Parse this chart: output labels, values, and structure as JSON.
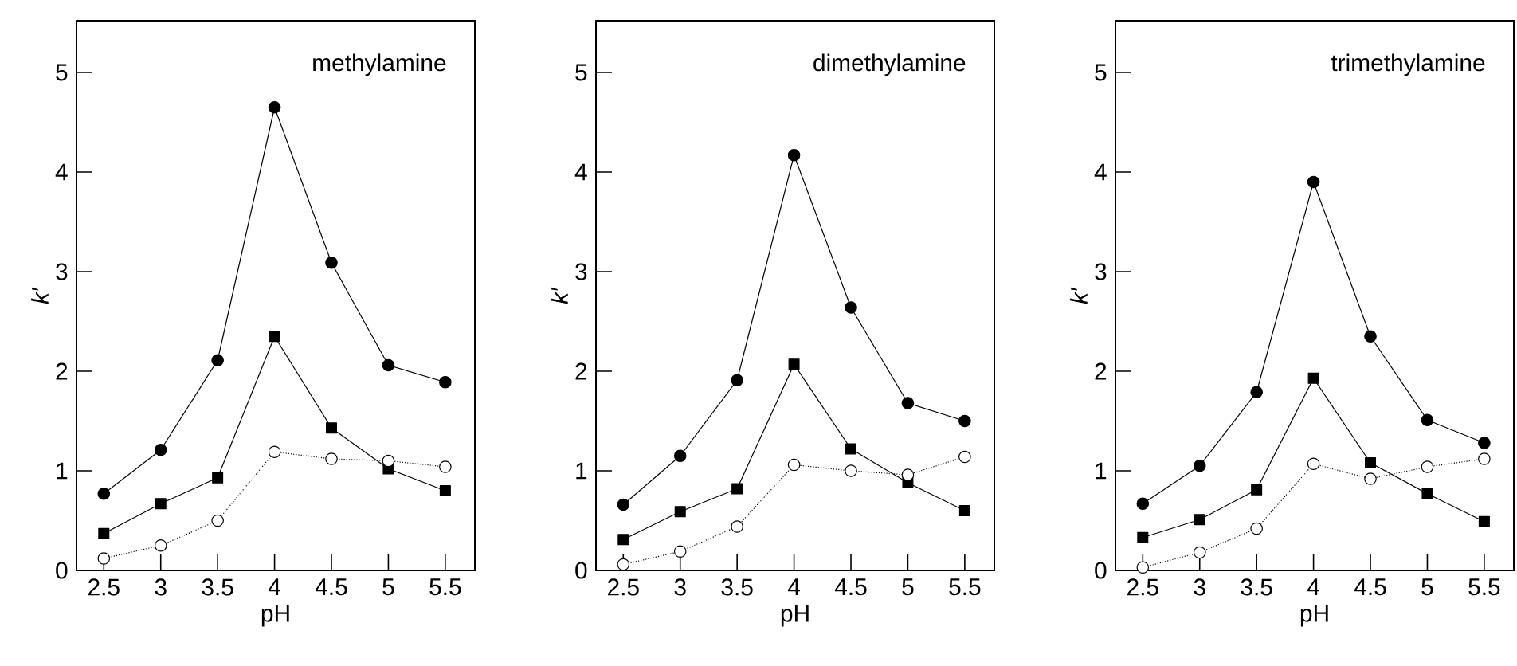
{
  "chart_data": [
    {
      "type": "line",
      "title": "methylamine",
      "xlabel": "pH",
      "ylabel": "*k*′",
      "xlim": [
        2.26,
        5.76
      ],
      "ylim": [
        0,
        5.52
      ],
      "xticks": [
        2.5,
        3,
        3.5,
        4,
        4.5,
        5,
        5.5
      ],
      "yticks": [
        0,
        1,
        2,
        3,
        4,
        5
      ],
      "x": [
        2.5,
        3,
        3.5,
        4,
        4.5,
        5,
        5.5
      ],
      "series": [
        {
          "color": "#000000",
          "marker": "circle",
          "line_style": "solid",
          "values": [
            0.77,
            1.21,
            2.11,
            4.65,
            3.09,
            2.06,
            1.89
          ]
        },
        {
          "color": "#000000",
          "marker": "square",
          "line_style": "solid",
          "values": [
            0.37,
            0.67,
            0.93,
            2.35,
            1.43,
            1.02,
            0.8
          ]
        },
        {
          "color": "#000000",
          "marker": "circle",
          "line_style": "dotted",
          "values": [
            0.12,
            0.25,
            0.5,
            1.19,
            1.12,
            1.1,
            1.04
          ]
        }
      ]
    },
    {
      "type": "line",
      "title": "dimethylamine",
      "xlabel": "pH",
      "ylabel": "*k*′",
      "xlim": [
        2.26,
        5.76
      ],
      "ylim": [
        0,
        5.52
      ],
      "xticks": [
        2.5,
        3,
        3.5,
        4,
        4.5,
        5,
        5.5
      ],
      "yticks": [
        0,
        1,
        2,
        3,
        4,
        5
      ],
      "x": [
        2.5,
        3,
        3.5,
        4,
        4.5,
        5,
        5.5
      ],
      "series": [
        {
          "color": "#000000",
          "marker": "circle",
          "line_style": "solid",
          "values": [
            0.66,
            1.15,
            1.91,
            4.17,
            2.64,
            1.68,
            1.5
          ]
        },
        {
          "color": "#000000",
          "marker": "square",
          "line_style": "solid",
          "values": [
            0.31,
            0.59,
            0.82,
            2.07,
            1.22,
            0.88,
            0.6
          ]
        },
        {
          "color": "#000000",
          "marker": "circle",
          "line_style": "dotted",
          "values": [
            0.06,
            0.19,
            0.44,
            1.06,
            1.0,
            0.96,
            1.14
          ]
        }
      ]
    },
    {
      "type": "line",
      "title": "trimethylamine",
      "xlabel": "pH",
      "ylabel": "*k*′",
      "xlim": [
        2.26,
        5.76
      ],
      "ylim": [
        0,
        5.52
      ],
      "xticks": [
        2.5,
        3,
        3.5,
        4,
        4.5,
        5,
        5.5
      ],
      "yticks": [
        0,
        1,
        2,
        3,
        4,
        5
      ],
      "x": [
        2.5,
        3,
        3.5,
        4,
        4.5,
        5,
        5.5
      ],
      "series": [
        {
          "color": "#000000",
          "marker": "circle",
          "line_style": "solid",
          "values": [
            0.67,
            1.05,
            1.79,
            3.9,
            2.35,
            1.51,
            1.28
          ]
        },
        {
          "color": "#000000",
          "marker": "square",
          "line_style": "solid",
          "values": [
            0.33,
            0.51,
            0.81,
            1.93,
            1.08,
            0.77,
            0.49
          ]
        },
        {
          "color": "#000000",
          "marker": "circle",
          "line_style": "dotted",
          "values": [
            0.03,
            0.18,
            0.42,
            1.07,
            0.92,
            1.04,
            1.12
          ]
        }
      ]
    }
  ]
}
